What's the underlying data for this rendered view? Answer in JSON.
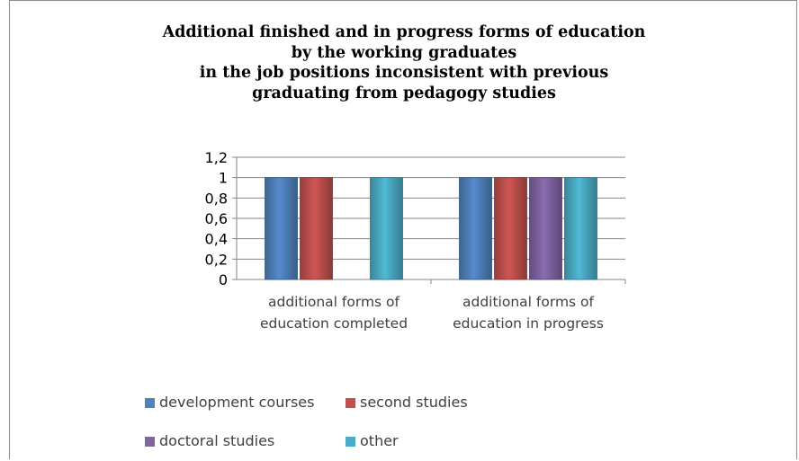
{
  "chart_data": {
    "type": "bar",
    "title": "Additional finished and in progress forms of education\nby the working graduates\nin the job positions inconsistent with previous\ngraduating from pedagogy studies",
    "xlabel": "",
    "ylabel": "",
    "categories": [
      "additional forms of education completed",
      "additional forms of education in progress"
    ],
    "category_lines": [
      [
        "additional forms of",
        "education completed"
      ],
      [
        "additional forms of",
        "education in progress"
      ]
    ],
    "ylim": [
      0,
      1.2
    ],
    "yticks": [
      "0",
      "0,2",
      "0,4",
      "0,6",
      "0,8",
      "1",
      "1,2"
    ],
    "grid": true,
    "legend_position": "bottom",
    "series": [
      {
        "name": "development courses",
        "color": "#4f81bd",
        "values": [
          1,
          1
        ]
      },
      {
        "name": "second studies",
        "color": "#c0504d",
        "values": [
          1,
          1
        ]
      },
      {
        "name": "doctoral studies",
        "color": "#8064a2",
        "values": [
          0,
          1
        ]
      },
      {
        "name": "other",
        "color": "#4bacc6",
        "values": [
          1,
          1
        ]
      }
    ]
  }
}
